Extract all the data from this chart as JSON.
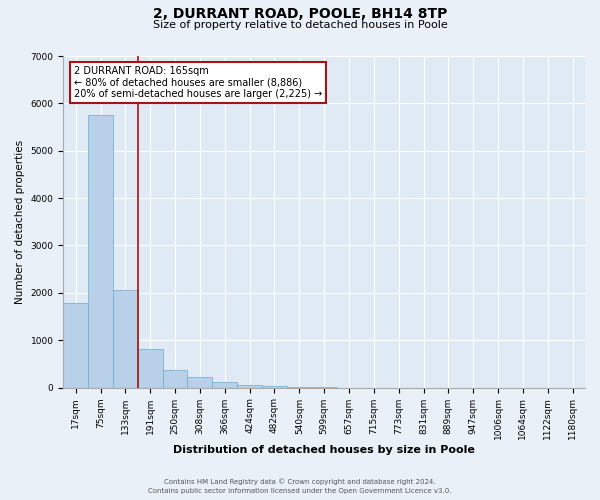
{
  "title": "2, DURRANT ROAD, POOLE, BH14 8TP",
  "subtitle": "Size of property relative to detached houses in Poole",
  "xlabel": "Distribution of detached houses by size in Poole",
  "ylabel": "Number of detached properties",
  "bar_labels": [
    "17sqm",
    "75sqm",
    "133sqm",
    "191sqm",
    "250sqm",
    "308sqm",
    "366sqm",
    "424sqm",
    "482sqm",
    "540sqm",
    "599sqm",
    "657sqm",
    "715sqm",
    "773sqm",
    "831sqm",
    "889sqm",
    "947sqm",
    "1006sqm",
    "1064sqm",
    "1122sqm",
    "1180sqm"
  ],
  "bar_values": [
    1780,
    5760,
    2050,
    820,
    370,
    230,
    110,
    55,
    30,
    10,
    5,
    0,
    0,
    0,
    0,
    0,
    0,
    0,
    0,
    0,
    0
  ],
  "bar_color": "#b8d0e8",
  "bar_edge_color": "#6aaad4",
  "ylim": [
    0,
    7000
  ],
  "yticks": [
    0,
    1000,
    2000,
    3000,
    4000,
    5000,
    6000,
    7000
  ],
  "vline_x": 2.5,
  "vline_color": "#aa1111",
  "annotation_title": "2 DURRANT ROAD: 165sqm",
  "annotation_line1": "← 80% of detached houses are smaller (8,886)",
  "annotation_line2": "20% of semi-detached houses are larger (2,225) →",
  "annotation_box_color": "#aa1111",
  "footnote1": "Contains HM Land Registry data © Crown copyright and database right 2024.",
  "footnote2": "Contains public sector information licensed under the Open Government Licence v3.0.",
  "background_color": "#eaf0f8",
  "plot_bg_color": "#e0eaf5",
  "grid_color": "#ffffff",
  "title_fontsize": 10,
  "subtitle_fontsize": 8,
  "xlabel_fontsize": 8,
  "ylabel_fontsize": 7.5,
  "tick_fontsize": 6.5,
  "footnote_fontsize": 5.0
}
